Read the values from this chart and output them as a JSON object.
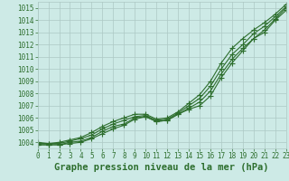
{
  "x": [
    0,
    1,
    2,
    3,
    4,
    5,
    6,
    7,
    8,
    9,
    10,
    11,
    12,
    13,
    14,
    15,
    16,
    17,
    18,
    19,
    20,
    21,
    22,
    23
  ],
  "series": [
    [
      1003.8,
      1003.8,
      1003.8,
      1003.9,
      1004.0,
      1004.3,
      1004.7,
      1005.1,
      1005.4,
      1005.9,
      1006.1,
      1005.7,
      1005.8,
      1006.3,
      1006.7,
      1007.0,
      1007.8,
      1009.3,
      1010.5,
      1011.5,
      1012.5,
      1013.0,
      1014.0,
      1014.8
    ],
    [
      1003.8,
      1003.8,
      1003.8,
      1004.0,
      1004.1,
      1004.4,
      1004.9,
      1005.3,
      1005.5,
      1006.0,
      1006.1,
      1005.7,
      1005.8,
      1006.3,
      1006.8,
      1007.3,
      1008.2,
      1009.6,
      1010.8,
      1011.7,
      1012.5,
      1013.2,
      1014.1,
      1015.0
    ],
    [
      1003.9,
      1003.9,
      1003.9,
      1004.1,
      1004.3,
      1004.6,
      1005.1,
      1005.5,
      1005.8,
      1006.1,
      1006.2,
      1005.8,
      1005.9,
      1006.4,
      1007.0,
      1007.6,
      1008.6,
      1010.0,
      1011.2,
      1012.0,
      1012.9,
      1013.5,
      1014.3,
      1015.1
    ],
    [
      1004.0,
      1003.9,
      1004.0,
      1004.2,
      1004.4,
      1004.8,
      1005.3,
      1005.7,
      1006.0,
      1006.3,
      1006.3,
      1005.9,
      1006.0,
      1006.5,
      1007.2,
      1007.9,
      1009.0,
      1010.5,
      1011.7,
      1012.5,
      1013.2,
      1013.8,
      1014.5,
      1015.3
    ]
  ],
  "line_color": "#2d6e2d",
  "marker": "+",
  "markersize": 4,
  "linewidth": 0.8,
  "xlim": [
    0,
    23
  ],
  "ylim": [
    1003.5,
    1015.5
  ],
  "yticks": [
    1004,
    1005,
    1006,
    1007,
    1008,
    1009,
    1010,
    1011,
    1012,
    1013,
    1014,
    1015
  ],
  "xticks": [
    0,
    1,
    2,
    3,
    4,
    5,
    6,
    7,
    8,
    9,
    10,
    11,
    12,
    13,
    14,
    15,
    16,
    17,
    18,
    19,
    20,
    21,
    22,
    23
  ],
  "xlabel": "Graphe pression niveau de la mer (hPa)",
  "bg_color": "#cdeae6",
  "grid_color": "#adc8c4",
  "tick_color": "#2d6e2d",
  "label_color": "#2d6e2d",
  "tick_fontsize": 5.5,
  "xlabel_fontsize": 7.5
}
